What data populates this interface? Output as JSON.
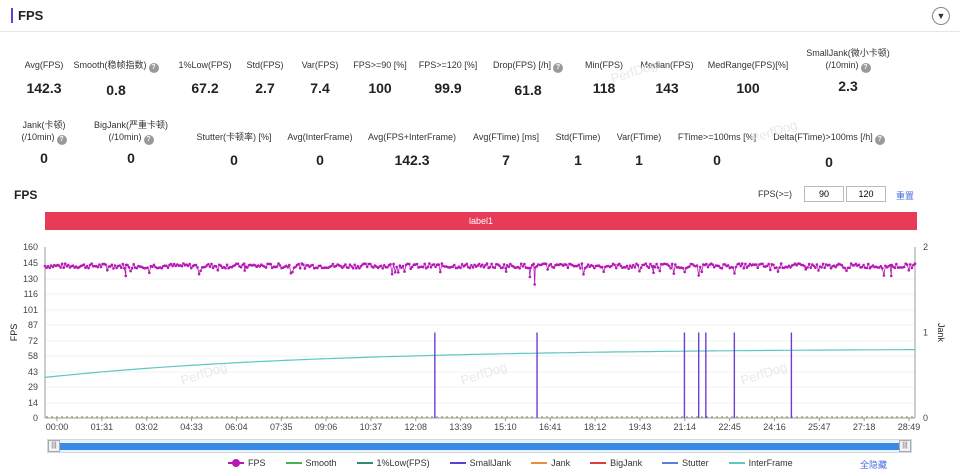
{
  "header": {
    "title": "FPS",
    "collapse_icon": "chevron-down-icon"
  },
  "watermark": "PerfDog",
  "metrics_row1": [
    {
      "label": "Avg(FPS)",
      "value": "142.3",
      "help": false
    },
    {
      "label": "Smooth(稳帧指数)",
      "value": "0.8",
      "help": true
    },
    {
      "label": "1%Low(FPS)",
      "value": "67.2",
      "help": false
    },
    {
      "label": "Std(FPS)",
      "value": "2.7",
      "help": false
    },
    {
      "label": "Var(FPS)",
      "value": "7.4",
      "help": false
    },
    {
      "label": "FPS>=90 [%]",
      "value": "100",
      "help": false
    },
    {
      "label": "FPS>=120 [%]",
      "value": "99.9",
      "help": false
    },
    {
      "label": "Drop(FPS) [/h]",
      "value": "61.8",
      "help": true
    },
    {
      "label": "Min(FPS)",
      "value": "118",
      "help": false
    },
    {
      "label": "Median(FPS)",
      "value": "143",
      "help": false
    },
    {
      "label": "MedRange(FPS)[%]",
      "value": "100",
      "help": false
    },
    {
      "label": "SmallJank(微小卡顿)",
      "label2": "(/10min)",
      "value": "2.3",
      "help": true
    }
  ],
  "metrics_row2": [
    {
      "label": "Jank(卡顿)",
      "label2": "(/10min)",
      "value": "0",
      "help": true
    },
    {
      "label": "BigJank(严重卡顿)",
      "label2": "(/10min)",
      "value": "0",
      "help": true
    },
    {
      "label": "Stutter(卡顿率) [%]",
      "value": "0",
      "help": false
    },
    {
      "label": "Avg(InterFrame)",
      "value": "0",
      "help": false
    },
    {
      "label": "Avg(FPS+InterFrame)",
      "value": "142.3",
      "help": false
    },
    {
      "label": "Avg(FTime) [ms]",
      "value": "7",
      "help": false
    },
    {
      "label": "Std(FTime)",
      "value": "1",
      "help": false
    },
    {
      "label": "Var(FTime)",
      "value": "1",
      "help": false
    },
    {
      "label": "FTime>=100ms [%]",
      "value": "0",
      "help": false
    },
    {
      "label": "Delta(FTime)>100ms [/h]",
      "value": "0",
      "help": true
    }
  ],
  "chart_header": {
    "title": "FPS",
    "threshold_label": "FPS(>=)",
    "threshold_low": "90",
    "threshold_high": "120",
    "reset_label": "重置"
  },
  "label_band": "label1",
  "chart_data": {
    "type": "line",
    "ylabel": "FPS",
    "y2label": "Jank",
    "yticks": [
      "160",
      "145",
      "130",
      "116",
      "101",
      "87",
      "72",
      "58",
      "43",
      "29",
      "14",
      "0"
    ],
    "y2ticks": [
      "2",
      "1",
      "0"
    ],
    "xticks": [
      "00:00",
      "01:31",
      "03:02",
      "04:33",
      "06:04",
      "07:35",
      "09:06",
      "10:37",
      "12:08",
      "13:39",
      "15:10",
      "16:41",
      "18:12",
      "19:43",
      "21:14",
      "22:45",
      "24:16",
      "25:47",
      "27:18",
      "28:49"
    ],
    "duration_s": 1830,
    "ylim": [
      0,
      160
    ],
    "y2lim": [
      0,
      2
    ],
    "series": [
      {
        "name": "FPS",
        "color": "#b518b5",
        "mean": 142.3,
        "min": 118,
        "dips": [
          [
            170,
            133
          ],
          [
            420,
            138
          ],
          [
            970,
            137
          ],
          [
            1020,
            132
          ],
          [
            1030,
            125
          ],
          [
            1280,
            136
          ],
          [
            1600,
            139
          ],
          [
            1780,
            133
          ]
        ]
      },
      {
        "name": "InterFrame",
        "color": "#5fc7c0",
        "start": 38,
        "end": 64
      },
      {
        "name": "SmallJank",
        "color": "#6b3fd0",
        "events": [
          [
            820,
            1
          ],
          [
            1035,
            1
          ],
          [
            1345,
            1
          ],
          [
            1375,
            1
          ],
          [
            1390,
            1
          ],
          [
            1450,
            1
          ],
          [
            1570,
            1
          ]
        ]
      },
      {
        "name": "Jank",
        "color": "#8b7a3a",
        "values": 0
      }
    ]
  },
  "legend": [
    {
      "name": "FPS",
      "color": "#b518b5"
    },
    {
      "name": "Smooth",
      "color": "#4caf50"
    },
    {
      "name": "1%Low(FPS)",
      "color": "#2e8b7a"
    },
    {
      "name": "SmallJank",
      "color": "#5b3fd0"
    },
    {
      "name": "Jank",
      "color": "#f08a3c"
    },
    {
      "name": "BigJank",
      "color": "#e03a3a"
    },
    {
      "name": "Stutter",
      "color": "#5b7ed6"
    },
    {
      "name": "InterFrame",
      "color": "#5fc7c0"
    }
  ],
  "legend_hide_all": "全隐藏",
  "scrollbar": {
    "left_handle": "|||",
    "right_handle": "|||"
  }
}
